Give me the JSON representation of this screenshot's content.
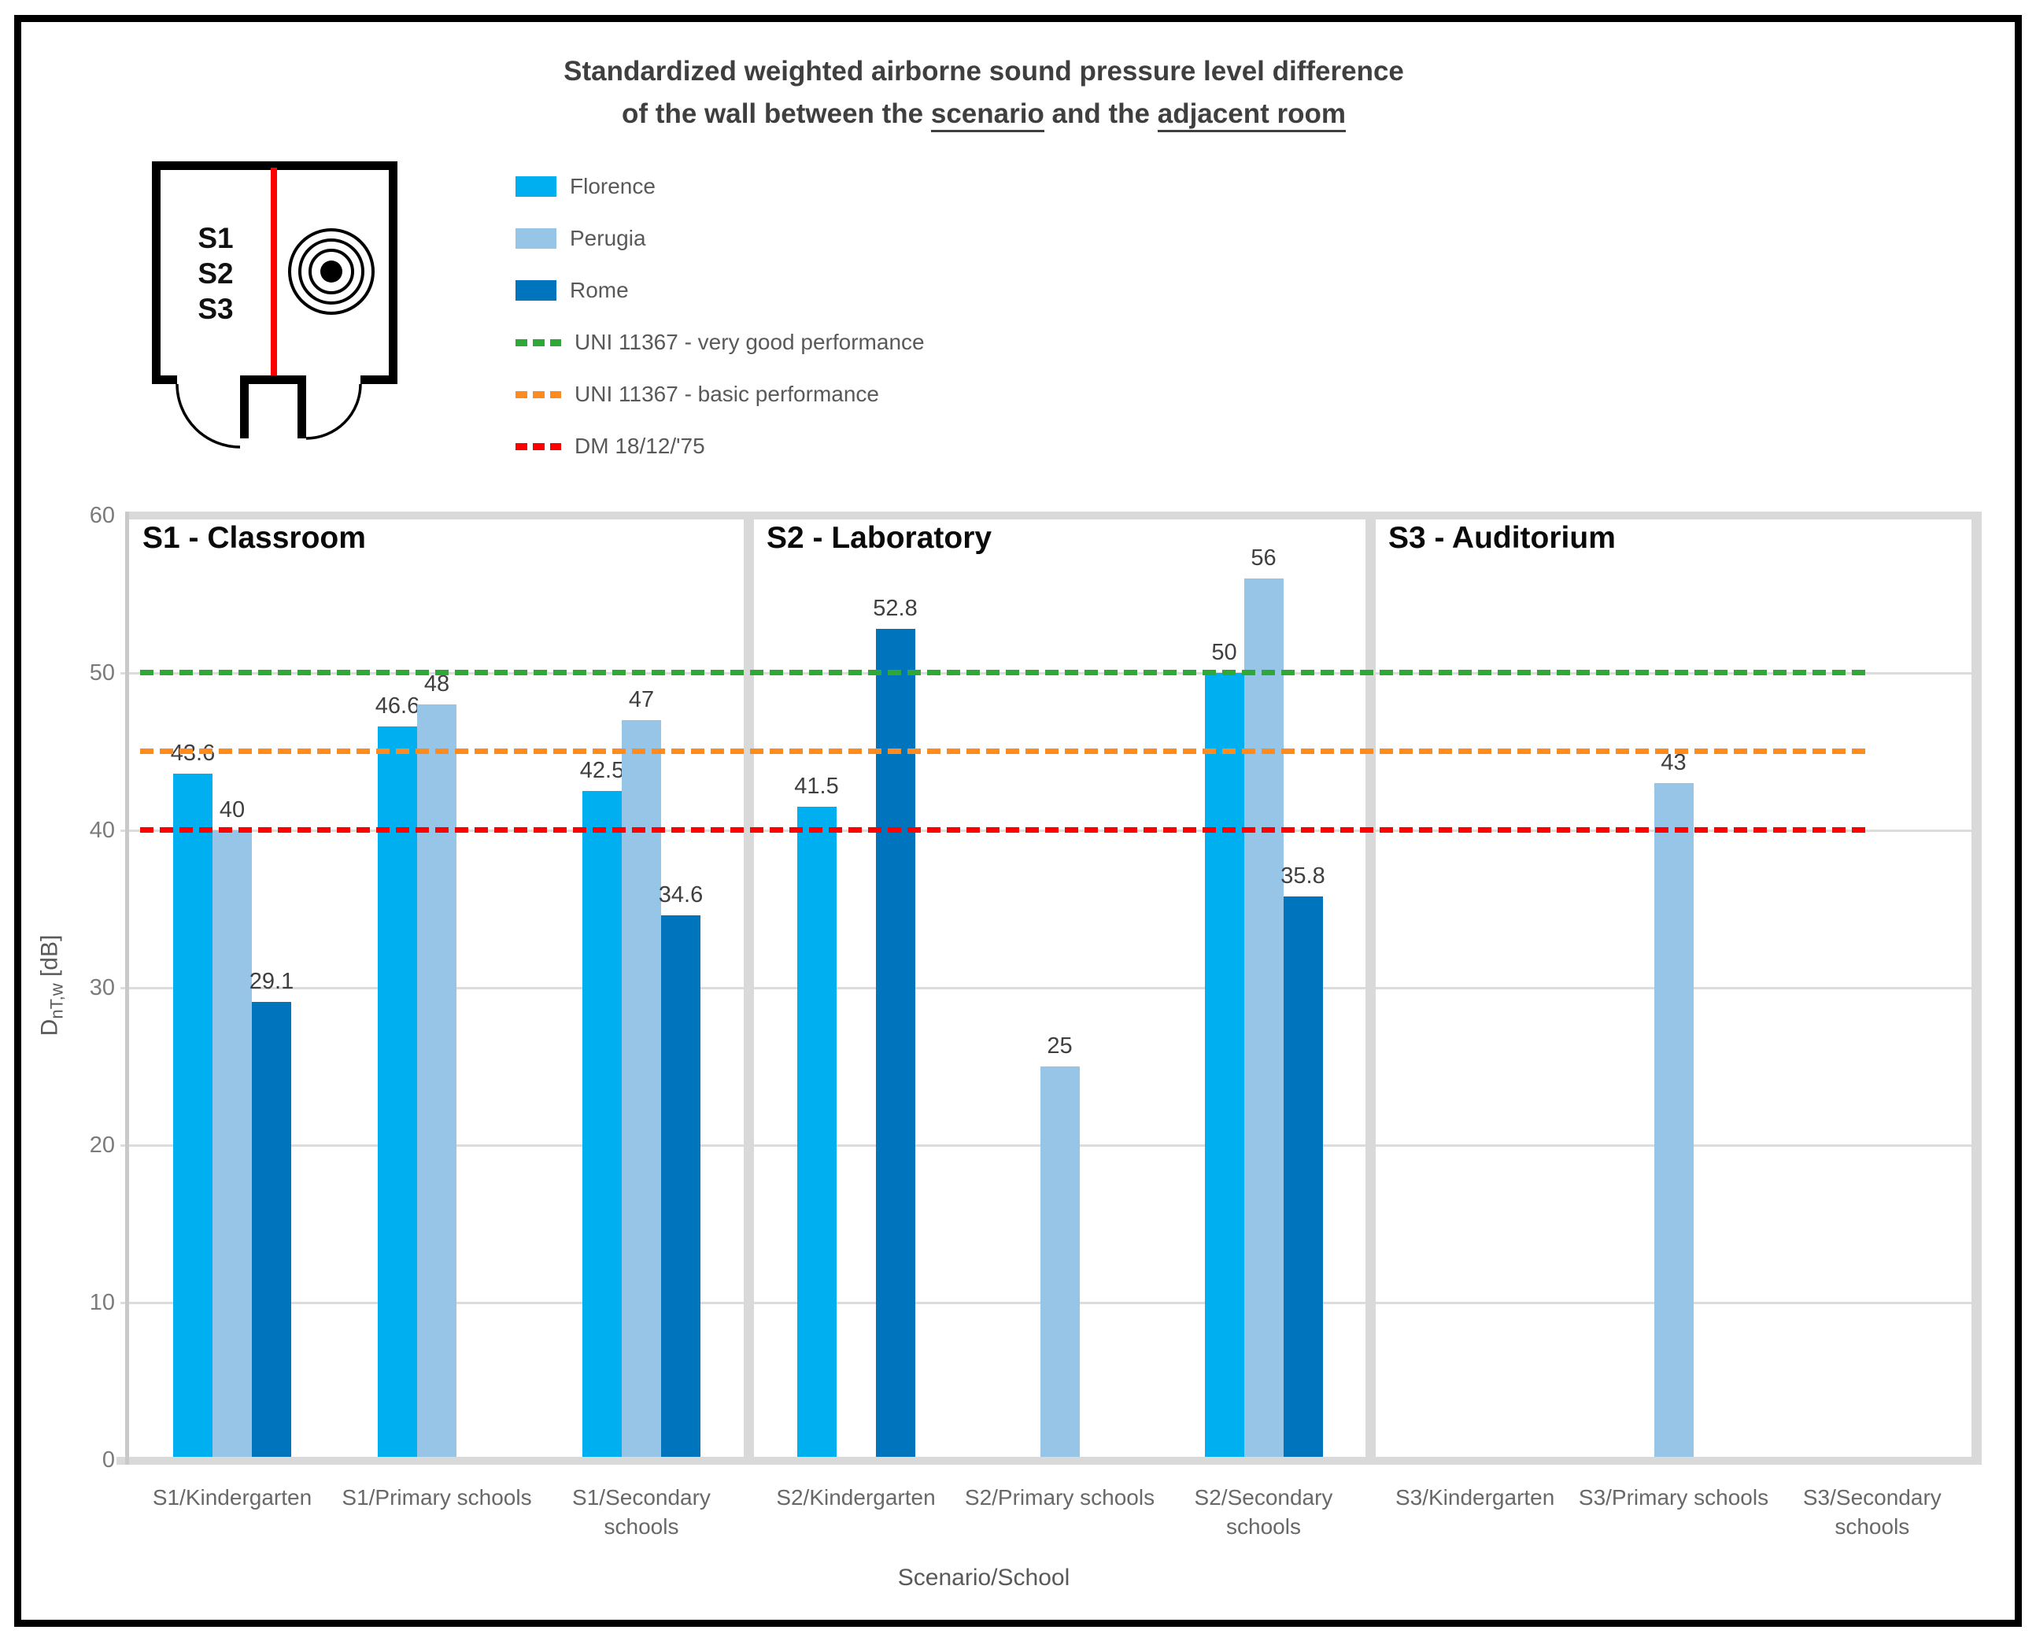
{
  "title": {
    "line1": "Standardized weighted airborne sound pressure level difference",
    "line2_prefix": "of the wall between the ",
    "line2_underline1": "scenario",
    "line2_middle": " and the ",
    "line2_underline2": "adjacent room"
  },
  "diagram": {
    "room_labels": [
      "S1",
      "S2",
      "S3"
    ],
    "wall_color": "#FF0000"
  },
  "legend": {
    "items": [
      {
        "label": "Florence",
        "type": "fill",
        "color": "#00AFEF"
      },
      {
        "label": "Perugia",
        "type": "fill",
        "color": "#96C5E8"
      },
      {
        "label": "Rome",
        "type": "fill",
        "color": "#0074BC"
      },
      {
        "label": "UNI 11367 - very good performance",
        "type": "dash",
        "color": "#2FA838"
      },
      {
        "label": "UNI 11367 - basic performance",
        "type": "dash",
        "color": "#FF8A1E"
      },
      {
        "label": "DM 18/12/'75",
        "type": "dash",
        "color": "#FF0000"
      }
    ]
  },
  "chart_data": {
    "type": "bar",
    "title": "Standardized weighted airborne sound pressure level difference of the wall between the scenario and the adjacent room",
    "xlabel": "Scenario/School",
    "ylabel_main": "D",
    "ylabel_sub": "nT,w",
    "ylabel_unit": " [dB]",
    "ylim": [
      0,
      60
    ],
    "yticks": [
      0,
      10,
      20,
      30,
      40,
      50,
      60
    ],
    "grid": true,
    "legend_position": "top-left",
    "panels": [
      {
        "label": "S1 - Classroom",
        "categories": [
          "S1/Kindergarten",
          "S1/Primary schools",
          "S1/Secondary schools"
        ]
      },
      {
        "label": "S2 - Laboratory",
        "categories": [
          "S2/Kindergarten",
          "S2/Primary schools",
          "S2/Secondary schools"
        ]
      },
      {
        "label": "S3 - Auditorium",
        "categories": [
          "S3/Kindergarten",
          "S3/Primary schools",
          "S3/Secondary schools"
        ]
      }
    ],
    "categories": [
      "S1/Kindergarten",
      "S1/Primary schools",
      "S1/Secondary schools",
      "S2/Kindergarten",
      "S2/Primary schools",
      "S2/Secondary schools",
      "S3/Kindergarten",
      "S3/Primary schools",
      "S3/Secondary schools"
    ],
    "series": [
      {
        "name": "Florence",
        "color": "#00AFEF",
        "values": [
          43.6,
          46.6,
          42.5,
          41.5,
          null,
          50,
          null,
          null,
          null
        ]
      },
      {
        "name": "Perugia",
        "color": "#96C5E8",
        "values": [
          40,
          48,
          47,
          null,
          25,
          56,
          null,
          43,
          null
        ]
      },
      {
        "name": "Rome",
        "color": "#0074BC",
        "values": [
          29.1,
          null,
          34.6,
          52.8,
          null,
          35.8,
          null,
          null,
          null
        ]
      }
    ],
    "reference_lines": [
      {
        "label": "UNI 11367 - very good performance",
        "value": 50,
        "color": "#2FA838"
      },
      {
        "label": "UNI 11367 - basic performance",
        "value": 45,
        "color": "#FF8A1E"
      },
      {
        "label": "DM 18/12/'75",
        "value": 40,
        "color": "#FF0000"
      }
    ]
  }
}
